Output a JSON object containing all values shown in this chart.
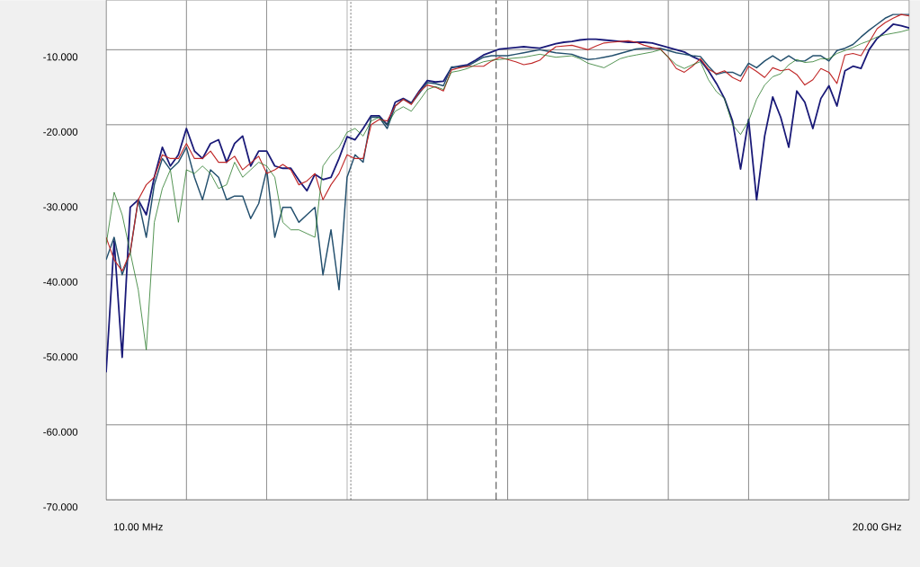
{
  "chart_data": {
    "type": "line",
    "categories": [
      null,
      null,
      null,
      null,
      "10.00 MHz",
      null,
      null,
      null,
      null,
      null,
      null,
      null,
      null,
      null,
      null,
      null,
      null,
      null,
      null,
      null,
      null,
      null,
      null,
      null,
      null,
      null,
      null,
      null,
      null,
      null,
      null,
      null,
      null,
      null,
      null,
      null,
      null,
      null,
      null,
      null,
      null,
      null,
      null,
      null,
      null,
      null,
      null,
      null,
      null,
      null,
      null,
      null,
      null,
      null,
      null,
      null,
      null,
      null,
      null,
      null,
      null,
      null,
      null,
      null,
      null,
      null,
      null,
      null,
      null,
      null,
      null,
      null,
      null,
      null,
      null,
      null,
      null,
      null,
      null,
      null,
      null,
      null,
      null,
      null,
      null,
      null,
      null,
      null,
      null,
      null,
      null,
      null,
      null,
      null,
      null,
      null,
      "20.00 GHz",
      null,
      null,
      null,
      null
    ],
    "ylim": [
      -70,
      -3.4
    ],
    "yticks": [
      {
        "value": -70,
        "label": "-70.000"
      },
      {
        "value": -60,
        "label": "-60.000"
      },
      {
        "value": -50,
        "label": "-50.000"
      },
      {
        "value": -40,
        "label": "-40.000"
      },
      {
        "value": -30,
        "label": "-30.000"
      },
      {
        "value": -20,
        "label": "-20.000"
      },
      {
        "value": -10,
        "label": "-10.000"
      }
    ],
    "grid": true,
    "series": [
      {
        "color": "#1a1a78",
        "values": [
          -53,
          -35.5,
          -51,
          -31,
          -30,
          -32,
          -27,
          -23,
          -25.5,
          -24,
          -20.5,
          -23.5,
          -24.5,
          -22.5,
          -22,
          -25,
          -22.5,
          -21.5,
          -25.5,
          -23.5,
          -23.5,
          -25.5,
          -25.8,
          -25.8,
          -27.4,
          -28.8,
          -26.6,
          -27.3,
          -27,
          -24.5,
          -21.6,
          -22,
          -20.5,
          -18.8,
          -18.8,
          -20,
          -17,
          -16.5,
          -17.1,
          -15.5,
          -14.1,
          -14.3,
          -14.2,
          -12.4,
          -12.2,
          -12,
          -11.4,
          -10.7,
          -10.3,
          -9.9,
          -9.8,
          -9.7,
          -9.6,
          -9.7,
          -9.8,
          -9.5,
          -9.2,
          -9,
          -8.9,
          -8.7,
          -8.6,
          -8.6,
          -8.7,
          -8.8,
          -8.9,
          -9,
          -9,
          -9,
          -9.1,
          -9.4,
          -9.7,
          -10,
          -10.3,
          -10.9,
          -11.4,
          -12.8,
          -14.5,
          -16.5,
          -19.5,
          -25.9,
          -19.3,
          -30,
          -21.5,
          -16.3,
          -19,
          -23,
          -15.5,
          -17,
          -20.5,
          -16.5,
          -14.8,
          -17.5,
          -12.8,
          -12.2,
          -12.5,
          -10,
          -8.5,
          -7.6,
          -6.6,
          -6.8,
          -7.1
        ]
      },
      {
        "color": "#24506e",
        "values": [
          -38,
          -35,
          -40,
          -37,
          -30,
          -35,
          -28,
          -24.5,
          -26,
          -25,
          -23,
          -27,
          -30,
          -26,
          -27,
          -30,
          -29.5,
          -29.5,
          -32.5,
          -30.5,
          -26,
          -35,
          -31,
          -31,
          -33,
          -32,
          -31,
          -40,
          -34,
          -42,
          -27,
          -24,
          -25,
          -19,
          -19,
          -20.5,
          -17.5,
          -16.6,
          -17.2,
          -15.8,
          -14.4,
          -14.5,
          -14.8,
          -12.3,
          -12.3,
          -12.2,
          -11.6,
          -11,
          -10.8,
          -10.8,
          -10.8,
          -10.6,
          -10.4,
          -10.2,
          -10,
          -10.2,
          -10.4,
          -10.5,
          -10.6,
          -11,
          -11.3,
          -11.2,
          -11,
          -10.8,
          -10.5,
          -10.2,
          -9.9,
          -9.8,
          -9.8,
          -9.8,
          -10.1,
          -10.4,
          -10.6,
          -10.8,
          -10.9,
          -12.2,
          -13.3,
          -13,
          -13,
          -13.5,
          -11.8,
          -12.4,
          -11.5,
          -10.8,
          -11.5,
          -10.8,
          -11.5,
          -11.5,
          -10.8,
          -10.8,
          -11.5,
          -10.1,
          -9.8,
          -9.3,
          -8.3,
          -7.4,
          -6.6,
          -5.8,
          -5.3,
          -5.3,
          -5.3
        ]
      },
      {
        "color": "#c02828",
        "values": [
          -35,
          -38,
          -39.5,
          -37,
          -30,
          -28,
          -27,
          -24,
          -24.5,
          -24.5,
          -22.5,
          -24.5,
          -24.5,
          -23.5,
          -25,
          -25,
          -24.2,
          -26,
          -25.1,
          -24.2,
          -26.5,
          -26,
          -25.3,
          -26,
          -28,
          -27.5,
          -26.5,
          -30,
          -28,
          -26.5,
          -24,
          -24.5,
          -24.5,
          -20,
          -19.3,
          -19.5,
          -17.5,
          -16.6,
          -17.3,
          -15.6,
          -14.7,
          -15,
          -15.5,
          -12.7,
          -12.4,
          -12.2,
          -12.2,
          -12.2,
          -11.5,
          -11,
          -11.3,
          -11.6,
          -12,
          -11.8,
          -11.4,
          -10.4,
          -9.6,
          -9.5,
          -9.4,
          -9.7,
          -10,
          -9.5,
          -9.1,
          -9,
          -8.9,
          -8.8,
          -9,
          -9.4,
          -9.7,
          -9.9,
          -11,
          -12.5,
          -13,
          -12.2,
          -11.2,
          -12.6,
          -13.2,
          -12.8,
          -13.7,
          -14.2,
          -12.2,
          -12.9,
          -13.7,
          -12.4,
          -12.8,
          -12.6,
          -13.3,
          -14.7,
          -14,
          -12.5,
          -13,
          -14.5,
          -10.7,
          -10.5,
          -10.8,
          -9,
          -7.2,
          -6.4,
          -5.8,
          -5.3,
          -5.5
        ]
      },
      {
        "color": "#2a7a2a",
        "values": [
          -36,
          -29,
          -32,
          -37,
          -42,
          -50,
          -33,
          -28.5,
          -26,
          -33,
          -26,
          -26.5,
          -25.5,
          -26.5,
          -28.5,
          -28,
          -25,
          -27,
          -26,
          -25,
          -25.5,
          -27,
          -33,
          -34,
          -34,
          -34.5,
          -35,
          -25.5,
          -24,
          -23,
          -21,
          -20.5,
          -21.5,
          -19.5,
          -19,
          -20,
          -18.2,
          -17.6,
          -18.2,
          -16.8,
          -15.3,
          -14.9,
          -15.3,
          -13,
          -12.8,
          -12.5,
          -12,
          -11.6,
          -11.4,
          -11.3,
          -11.2,
          -11.1,
          -11,
          -10.8,
          -10.6,
          -10.8,
          -11,
          -10.9,
          -10.8,
          -11.2,
          -11.8,
          -12.1,
          -12.4,
          -11.8,
          -11.2,
          -10.9,
          -10.7,
          -10.5,
          -10.3,
          -10,
          -11,
          -12,
          -12.5,
          -12,
          -11.6,
          -14,
          -15.6,
          -16.5,
          -20,
          -21.3,
          -19.5,
          -16.6,
          -14.7,
          -13.6,
          -13.2,
          -12,
          -11.3,
          -11.7,
          -11.6,
          -11.2,
          -11.2,
          -10.5,
          -10.1,
          -9.7,
          -9.2,
          -8.8,
          -8.3,
          -8,
          -7.8,
          -7.6,
          -7.3
        ]
      }
    ]
  }
}
